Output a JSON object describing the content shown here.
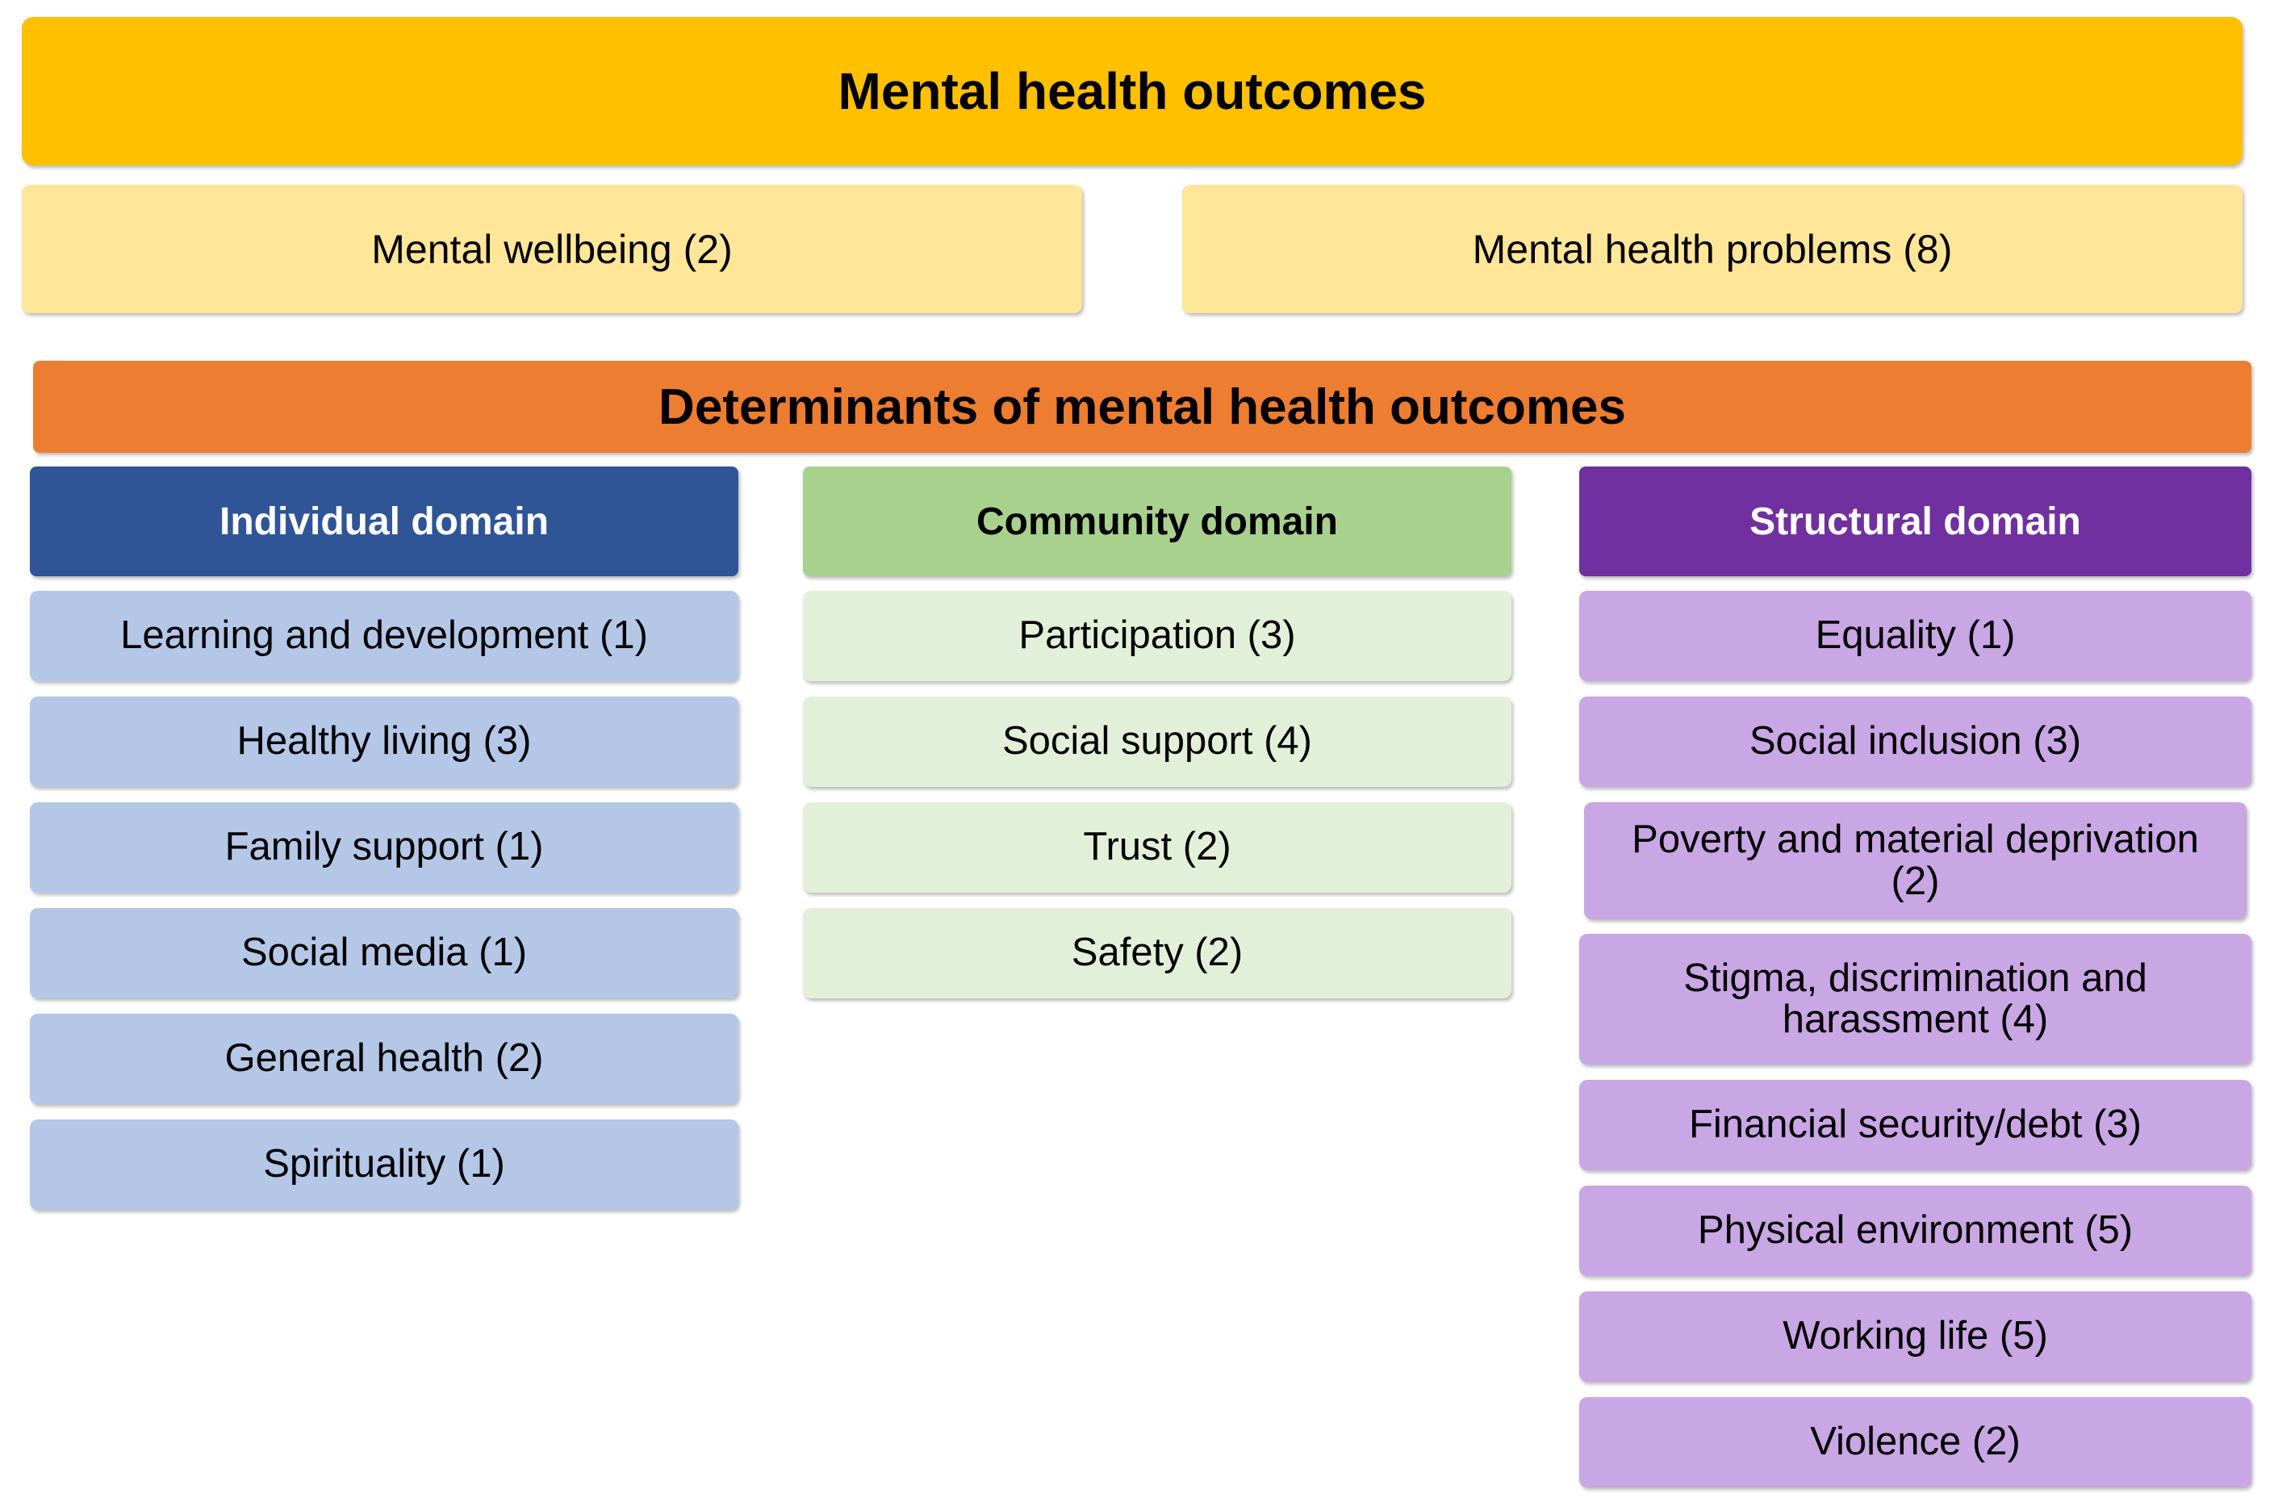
{
  "outcomes": {
    "title": "Mental health outcomes",
    "wellbeing": "Mental wellbeing (2)",
    "problems": "Mental health problems (8)"
  },
  "determinants": {
    "title": "Determinants of mental health outcomes"
  },
  "individual": {
    "title": "Individual domain",
    "items": [
      "Learning and development (1)",
      "Healthy living (3)",
      "Family support (1)",
      "Social media (1)",
      "General health (2)",
      "Spirituality (1)"
    ]
  },
  "community": {
    "title": "Community domain",
    "items": [
      "Participation (3)",
      "Social support (4)",
      "Trust (2)",
      "Safety (2)"
    ]
  },
  "structural": {
    "title": "Structural domain",
    "items": [
      "Equality (1)",
      "Social inclusion (3)",
      "Poverty and material deprivation (2)",
      "Stigma, discrimination and harassment (4)",
      "Financial security/debt (3)",
      "Physical environment (5)",
      "Working life (5)",
      "Violence (2)"
    ]
  },
  "colors": {
    "outcomes": "#ffc000",
    "outcome_sub": "#ffe699",
    "determinants": "#ed7d31",
    "individual_head": "#2f5597",
    "individual_item": "#b4c7e7",
    "community_head": "#a9d18e",
    "community_item": "#e2f0d9",
    "structural_head": "#7030a0",
    "structural_item": "#c9a6e4"
  }
}
